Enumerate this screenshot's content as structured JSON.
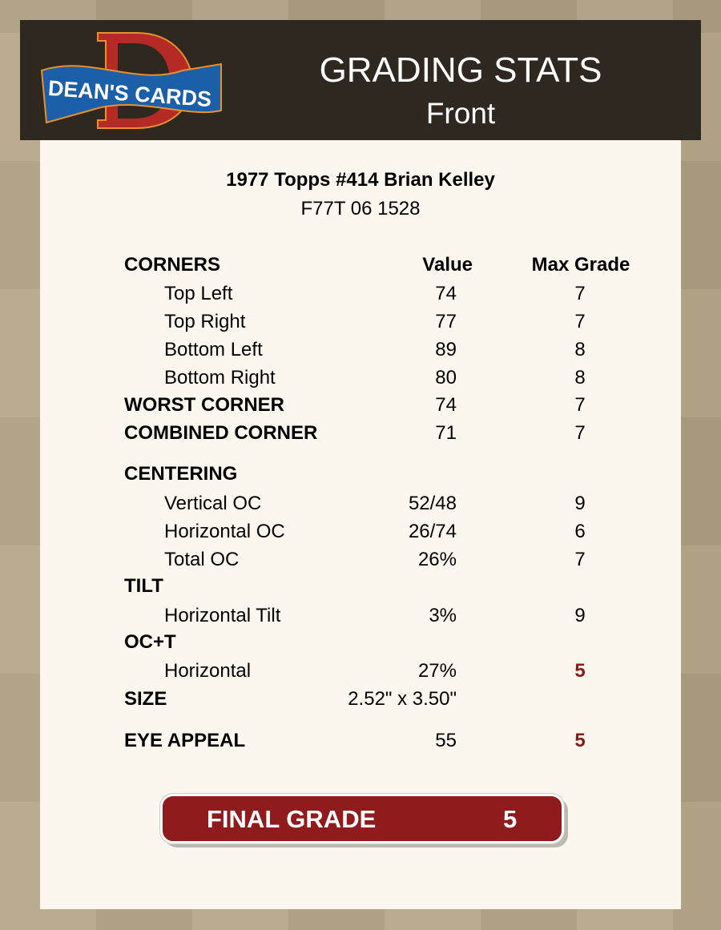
{
  "header": {
    "logo_text": "DEAN'S CARDS",
    "title": "GRADING STATS",
    "subtitle": "Front"
  },
  "card": {
    "name": "1977 Topps #414 Brian Kelley",
    "cert": "F77T 06 1528"
  },
  "columns": {
    "value": "Value",
    "max_grade": "Max Grade"
  },
  "corners": {
    "label": "CORNERS",
    "rows": [
      {
        "label": "Top Left",
        "value": "74",
        "max": "7"
      },
      {
        "label": "Top Right",
        "value": "77",
        "max": "7"
      },
      {
        "label": "Bottom Left",
        "value": "89",
        "max": "8"
      },
      {
        "label": "Bottom Right",
        "value": "80",
        "max": "8"
      }
    ],
    "worst": {
      "label": "WORST CORNER",
      "value": "74",
      "max": "7"
    },
    "combined": {
      "label": "COMBINED CORNER",
      "value": "71",
      "max": "7"
    }
  },
  "centering": {
    "label": "CENTERING",
    "rows": [
      {
        "label": "Vertical OC",
        "value": "52/48",
        "max": "9"
      },
      {
        "label": "Horizontal OC",
        "value": "26/74",
        "max": "6"
      },
      {
        "label": "Total OC",
        "value": "26%",
        "max": "7"
      }
    ]
  },
  "tilt": {
    "label": "TILT",
    "rows": [
      {
        "label": "Horizontal Tilt",
        "value": "3%",
        "max": "9"
      }
    ]
  },
  "oct": {
    "label": "OC+T",
    "rows": [
      {
        "label": "Horizontal",
        "value": "27%",
        "max": "5"
      }
    ]
  },
  "size": {
    "label": "SIZE",
    "value": "2.52\" x 3.50\""
  },
  "eye_appeal": {
    "label": "EYE APPEAL",
    "value": "55",
    "max": "5"
  },
  "final": {
    "label": "FINAL GRADE",
    "value": "5"
  },
  "colors": {
    "header_bg": "#2e2821",
    "panel_bg": "#fcf7ee",
    "accent_red": "#8f1b1d"
  }
}
